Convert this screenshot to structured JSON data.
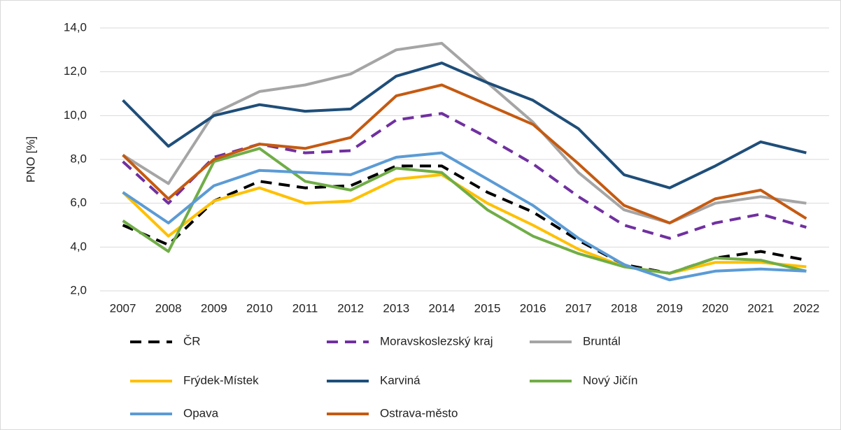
{
  "chart_data": {
    "type": "line",
    "ylabel": "PNO [%]",
    "categories": [
      "2007",
      "2008",
      "2009",
      "2010",
      "2011",
      "2012",
      "2013",
      "2014",
      "2015",
      "2016",
      "2017",
      "2018",
      "2019",
      "2020",
      "2021",
      "2022"
    ],
    "ylim": [
      2,
      14
    ],
    "yticks": [
      {
        "value": 2,
        "label": "2,0"
      },
      {
        "value": 4,
        "label": "4,0"
      },
      {
        "value": 6,
        "label": "6,0"
      },
      {
        "value": 8,
        "label": "8,0"
      },
      {
        "value": 10,
        "label": "10,0"
      },
      {
        "value": 12,
        "label": "12,0"
      },
      {
        "value": 14,
        "label": "14,0"
      }
    ],
    "grid": true,
    "legend": "bottom",
    "series": [
      {
        "name": "ČR",
        "color": "#000000",
        "dashed": true,
        "values": [
          5.0,
          4.1,
          6.1,
          7.0,
          6.7,
          6.8,
          7.7,
          7.7,
          6.5,
          5.6,
          4.3,
          3.2,
          2.8,
          3.5,
          3.8,
          3.4
        ]
      },
      {
        "name": "Moravskoslezský kraj",
        "color": "#7030a0",
        "dashed": true,
        "values": [
          7.9,
          6.0,
          8.1,
          8.7,
          8.3,
          8.4,
          9.8,
          10.1,
          9.0,
          7.8,
          6.3,
          5.0,
          4.4,
          5.1,
          5.5,
          4.9
        ]
      },
      {
        "name": "Bruntál",
        "color": "#a5a5a5",
        "dashed": false,
        "values": [
          8.2,
          6.9,
          10.1,
          11.1,
          11.4,
          11.9,
          13.0,
          13.3,
          11.5,
          9.7,
          7.4,
          5.7,
          5.1,
          6.0,
          6.3,
          6.0
        ]
      },
      {
        "name": "Frýdek-Místek",
        "color": "#ffc000",
        "dashed": false,
        "values": [
          6.5,
          4.5,
          6.1,
          6.7,
          6.0,
          6.1,
          7.1,
          7.3,
          6.0,
          5.0,
          3.9,
          3.1,
          2.8,
          3.3,
          3.3,
          3.1
        ]
      },
      {
        "name": "Karviná",
        "color": "#1f4e79",
        "dashed": false,
        "values": [
          10.7,
          8.6,
          10.0,
          10.5,
          10.2,
          10.3,
          11.8,
          12.4,
          11.5,
          10.7,
          9.4,
          7.3,
          6.7,
          7.7,
          8.8,
          8.3
        ]
      },
      {
        "name": "Nový Jičín",
        "color": "#70ad47",
        "dashed": false,
        "values": [
          5.2,
          3.8,
          7.9,
          8.5,
          7.0,
          6.6,
          7.6,
          7.4,
          5.7,
          4.5,
          3.7,
          3.1,
          2.8,
          3.5,
          3.4,
          2.9
        ]
      },
      {
        "name": "Opava",
        "color": "#5b9bd5",
        "dashed": false,
        "values": [
          6.5,
          5.1,
          6.8,
          7.5,
          7.4,
          7.3,
          8.1,
          8.3,
          7.1,
          5.9,
          4.4,
          3.2,
          2.5,
          2.9,
          3.0,
          2.9
        ]
      },
      {
        "name": "Ostrava-město",
        "color": "#c55a11",
        "dashed": false,
        "values": [
          8.2,
          6.2,
          8.0,
          8.7,
          8.5,
          9.0,
          10.9,
          11.4,
          10.5,
          9.6,
          7.8,
          5.9,
          5.1,
          6.2,
          6.6,
          5.3
        ]
      }
    ]
  }
}
